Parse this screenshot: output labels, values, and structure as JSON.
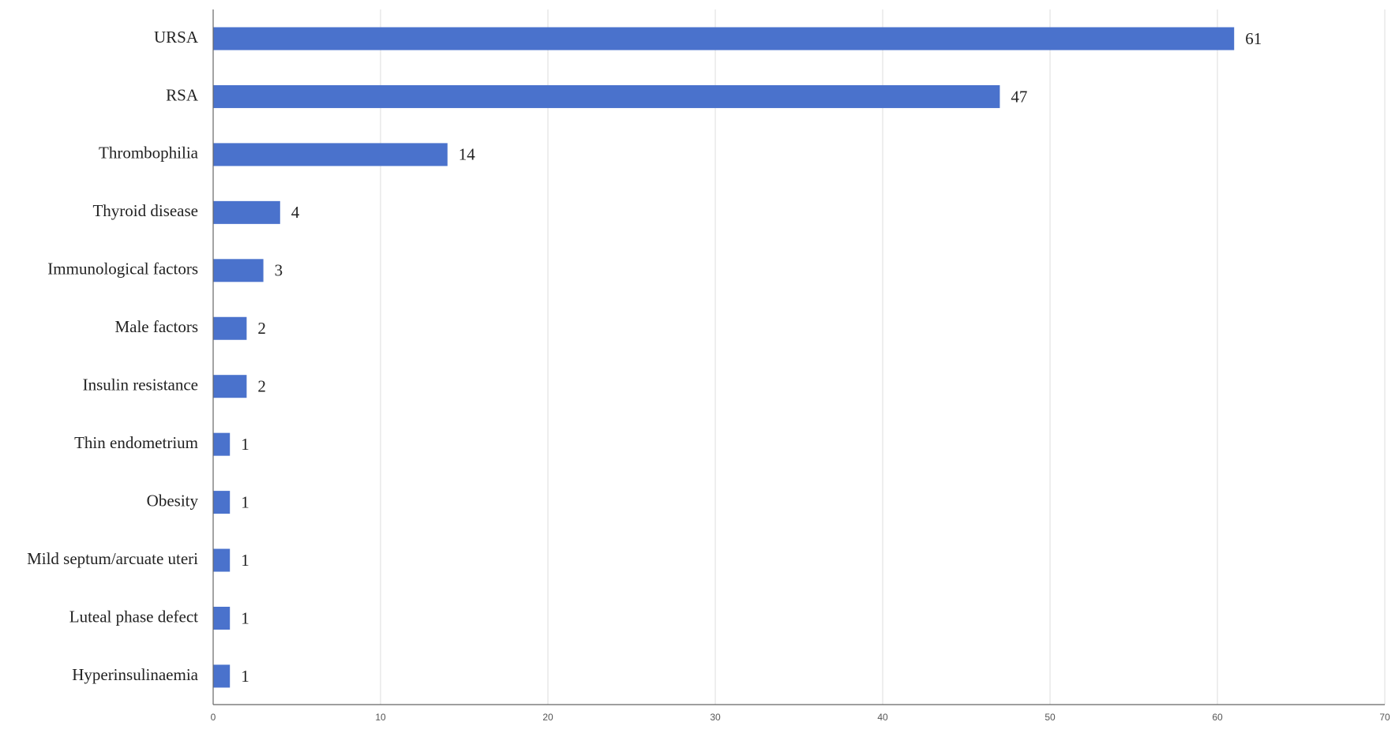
{
  "chart_data": {
    "type": "bar",
    "orientation": "horizontal",
    "categories": [
      "URSA",
      "RSA",
      "Thrombophilia",
      "Thyroid disease",
      "Immunological factors",
      "Male factors",
      "Insulin resistance",
      "Thin endometrium",
      "Obesity",
      "Mild septum/arcuate uteri",
      "Luteal phase defect",
      "Hyperinsulinaemia"
    ],
    "values": [
      61,
      47,
      14,
      4,
      3,
      2,
      2,
      1,
      1,
      1,
      1,
      1
    ],
    "color": "#4a72cc",
    "xlim": [
      0,
      70
    ],
    "xticks": [
      0,
      10,
      20,
      30,
      40,
      50,
      60,
      70
    ],
    "grid": true
  }
}
